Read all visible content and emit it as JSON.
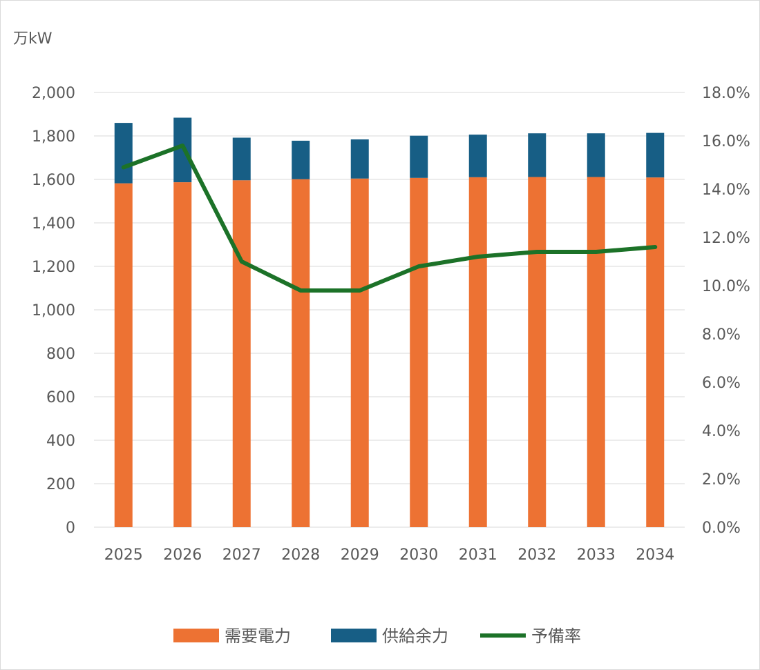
{
  "chart_data": {
    "type": "bar",
    "stacked": true,
    "y_unit_label": "万kW",
    "categories": [
      "2025",
      "2026",
      "2027",
      "2028",
      "2029",
      "2030",
      "2031",
      "2032",
      "2033",
      "2034"
    ],
    "ylim": [
      0,
      2000
    ],
    "y_ticks": [
      0,
      200,
      400,
      600,
      800,
      1000,
      1200,
      1400,
      1600,
      1800,
      2000
    ],
    "y_tick_labels": [
      "0",
      "200",
      "400",
      "600",
      "800",
      "1,000",
      "1,200",
      "1,400",
      "1,600",
      "1,800",
      "2,000"
    ],
    "y2lim": [
      0,
      18
    ],
    "y2_ticks": [
      0,
      2,
      4,
      6,
      8,
      10,
      12,
      14,
      16,
      18
    ],
    "y2_tick_labels": [
      "0.0%",
      "2.0%",
      "4.0%",
      "6.0%",
      "8.0%",
      "10.0%",
      "12.0%",
      "14.0%",
      "16.0%",
      "18.0%"
    ],
    "grid": true,
    "legend_position": "bottom",
    "series": [
      {
        "name": "需要電力",
        "type": "bar",
        "axis": "left",
        "color": "#ED7233",
        "values": [
          1582,
          1587,
          1596,
          1601,
          1604,
          1607,
          1610,
          1611,
          1611,
          1609
        ]
      },
      {
        "name": "供給余力",
        "type": "bar",
        "axis": "left",
        "color": "#175E85",
        "values": [
          278,
          297,
          196,
          177,
          180,
          194,
          196,
          201,
          201,
          205
        ]
      },
      {
        "name": "予備率",
        "type": "line",
        "axis": "right",
        "color": "#1C7228",
        "values": [
          14.9,
          15.8,
          11.0,
          9.8,
          9.8,
          10.8,
          11.2,
          11.4,
          11.4,
          11.6
        ]
      }
    ]
  }
}
